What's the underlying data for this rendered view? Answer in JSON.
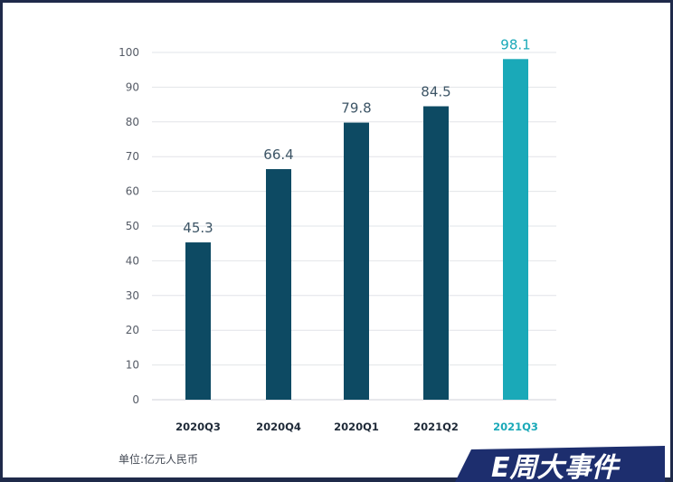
{
  "chart_data": {
    "type": "bar",
    "categories": [
      "2020Q3",
      "2020Q4",
      "2020Q1",
      "2021Q2",
      "2021Q3"
    ],
    "values": [
      45.3,
      66.4,
      79.8,
      84.5,
      98.1
    ],
    "value_labels": [
      "45.3",
      "66.4",
      "79.8",
      "84.5",
      "98.1"
    ],
    "yticks": [
      "0",
      "10",
      "20",
      "30",
      "40",
      "50",
      "60",
      "70",
      "80",
      "90",
      "100"
    ],
    "ylim": [
      0,
      100
    ],
    "grid": true,
    "legend": "none",
    "title": "",
    "xlabel": "",
    "ylabel": ""
  },
  "unit_label": "单位:亿元人民币",
  "logo_text": "E周大事件",
  "colors": {
    "bar": "#0d4a63",
    "highlight_bar": "#1aa9b8",
    "grid": "#e2e4e8",
    "frame": "#1f2a4a",
    "logo_bg": "#1d2e6e"
  }
}
